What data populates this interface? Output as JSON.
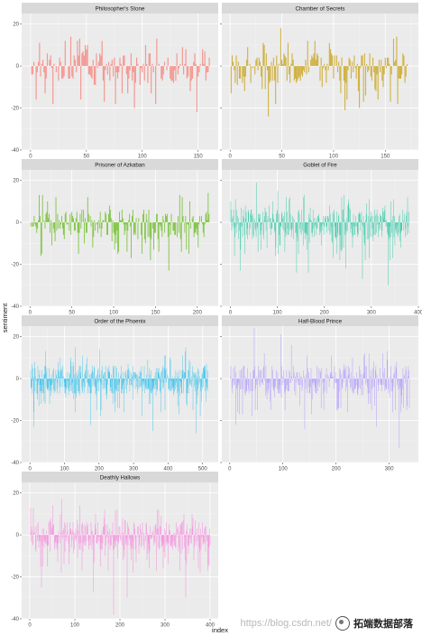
{
  "chart_data": {
    "type": "bar",
    "xlabel": "index",
    "ylabel": "sentiment",
    "ylim": [
      -40,
      25
    ],
    "yticks": [
      -40,
      -20,
      0,
      20
    ],
    "grid": true,
    "facets": [
      {
        "title": "Philosopher's Stone",
        "color": "#F8766D",
        "n": 160,
        "xticks": [
          0,
          50,
          100,
          150
        ],
        "xlim": [
          -8,
          168
        ],
        "peaks": [
          {
            "x": 35,
            "y": 14
          },
          {
            "x": 43,
            "y": 13
          },
          {
            "x": 63,
            "y": 12
          },
          {
            "x": 112,
            "y": 13
          },
          {
            "x": 138,
            "y": 8
          },
          {
            "x": 153,
            "y": 8
          },
          {
            "x": 92,
            "y": -20
          },
          {
            "x": 148,
            "y": -22
          }
        ]
      },
      {
        "title": "Chamber of Secrets",
        "color": "#C49A00",
        "n": 172,
        "xticks": [
          0,
          50,
          100,
          150
        ],
        "xlim": [
          -8,
          182
        ],
        "peaks": [
          {
            "x": 48,
            "y": 18
          },
          {
            "x": 32,
            "y": 10
          },
          {
            "x": 95,
            "y": 11
          },
          {
            "x": 160,
            "y": 14
          },
          {
            "x": 36,
            "y": -24
          },
          {
            "x": 110,
            "y": -21
          },
          {
            "x": 124,
            "y": -20
          }
        ]
      },
      {
        "title": "Prisoner of Azkaban",
        "color": "#53B400",
        "n": 214,
        "xticks": [
          0,
          50,
          100,
          150,
          200
        ],
        "xlim": [
          -10,
          225
        ],
        "peaks": [
          {
            "x": 10,
            "y": 13
          },
          {
            "x": 30,
            "y": 12
          },
          {
            "x": 68,
            "y": 12
          },
          {
            "x": 190,
            "y": 10
          },
          {
            "x": 212,
            "y": 14
          },
          {
            "x": 143,
            "y": -18
          },
          {
            "x": 165,
            "y": -23
          }
        ]
      },
      {
        "title": "Goblet of Fire",
        "color": "#00C094",
        "n": 380,
        "xticks": [
          0,
          100,
          200,
          300,
          400
        ],
        "xlim": [
          -18,
          400
        ],
        "peaks": [
          {
            "x": 55,
            "y": 19
          },
          {
            "x": 100,
            "y": 15
          },
          {
            "x": 155,
            "y": 12
          },
          {
            "x": 20,
            "y": -23
          },
          {
            "x": 140,
            "y": -24
          },
          {
            "x": 165,
            "y": -24
          },
          {
            "x": 245,
            "y": -22
          },
          {
            "x": 280,
            "y": -27
          },
          {
            "x": 335,
            "y": -30
          }
        ]
      },
      {
        "title": "Order of the Phoenix",
        "color": "#00B6EB",
        "n": 515,
        "xticks": [
          0,
          100,
          200,
          300,
          400,
          500
        ],
        "xlim": [
          -24,
          545
        ],
        "peaks": [
          {
            "x": 130,
            "y": 15
          },
          {
            "x": 200,
            "y": 14
          },
          {
            "x": 450,
            "y": 15
          },
          {
            "x": 10,
            "y": -23
          },
          {
            "x": 175,
            "y": -22
          },
          {
            "x": 355,
            "y": -25
          },
          {
            "x": 480,
            "y": -26
          }
        ]
      },
      {
        "title": "Half-Blood Prince",
        "color": "#A58AFF",
        "n": 338,
        "xticks": [
          0,
          100,
          200,
          300
        ],
        "xlim": [
          -15,
          355
        ],
        "peaks": [
          {
            "x": 45,
            "y": 24
          },
          {
            "x": 95,
            "y": 21
          },
          {
            "x": 115,
            "y": 16
          },
          {
            "x": 230,
            "y": 10
          },
          {
            "x": 10,
            "y": -22
          },
          {
            "x": 140,
            "y": -24
          },
          {
            "x": 275,
            "y": -23
          },
          {
            "x": 318,
            "y": -33
          }
        ]
      },
      {
        "title": "Deathly Hallows",
        "color": "#FB61D7",
        "n": 400,
        "xticks": [
          0,
          100,
          200,
          300,
          400
        ],
        "xlim": [
          -18,
          418
        ],
        "peaks": [
          {
            "x": 50,
            "y": 14
          },
          {
            "x": 70,
            "y": 17
          },
          {
            "x": 110,
            "y": 14
          },
          {
            "x": 165,
            "y": 12
          },
          {
            "x": 285,
            "y": 12
          },
          {
            "x": 25,
            "y": -25
          },
          {
            "x": 140,
            "y": -27
          },
          {
            "x": 185,
            "y": -38
          },
          {
            "x": 215,
            "y": -30
          },
          {
            "x": 345,
            "y": -30
          }
        ]
      }
    ]
  },
  "watermark": {
    "url": "https://blog.csdn.net/",
    "name": "拓端数据部落"
  }
}
